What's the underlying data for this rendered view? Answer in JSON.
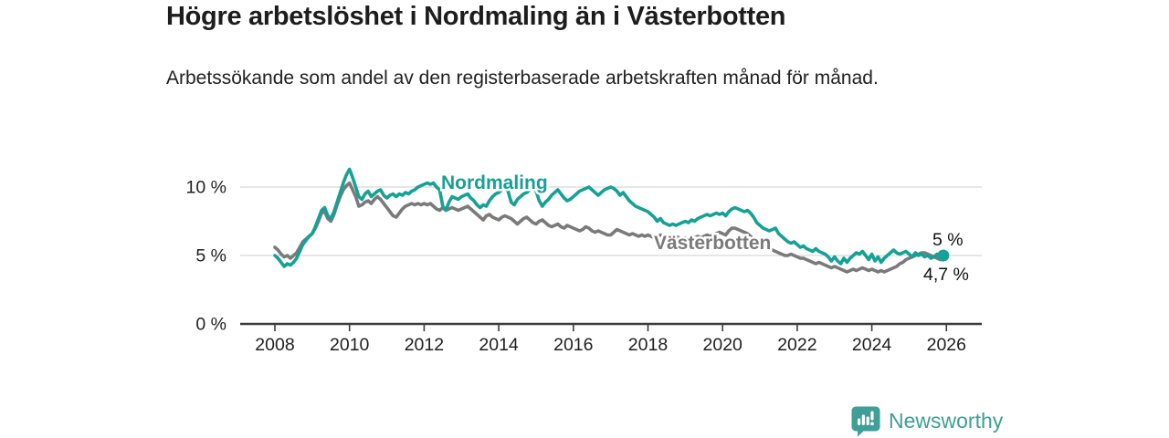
{
  "header": {
    "title": "Högre arbetslöshet i Nordmaling än i Västerbotten",
    "subtitle": "Arbetssökande som andel av den registerbaserade arbetskraften månad för månad."
  },
  "chart_data": {
    "type": "line",
    "title": "Högre arbetslöshet i Nordmaling än i Västerbotten",
    "subtitle": "Arbetssökande som andel av den registerbaserade arbetskraften månad för månad.",
    "unit": "%",
    "x_start_year": 2008,
    "x_interval": "monthly",
    "x_tick_years": [
      2008,
      2010,
      2012,
      2014,
      2016,
      2018,
      2020,
      2022,
      2024,
      2026
    ],
    "y_ticks": [
      {
        "label": "10 %",
        "value": 10
      },
      {
        "label": "5 %",
        "value": 5
      },
      {
        "label": "0 %",
        "value": 0
      }
    ],
    "ylim": [
      0,
      12
    ],
    "grid": true,
    "legend_position": "inline-labels",
    "series": [
      {
        "name": "Västerbotten",
        "color": "#7a7a7a",
        "end_label": "4,7 %",
        "end_value": 4.7,
        "values": [
          5.6,
          5.4,
          5.1,
          4.9,
          5.0,
          4.8,
          5.0,
          5.2,
          5.6,
          6.0,
          6.2,
          6.4,
          6.6,
          7.0,
          7.5,
          8.1,
          8.2,
          7.7,
          7.5,
          8.0,
          8.7,
          9.3,
          9.8,
          10.1,
          10.3,
          9.8,
          9.3,
          8.6,
          8.7,
          8.9,
          9.0,
          8.8,
          9.1,
          9.3,
          9.1,
          8.8,
          8.5,
          8.2,
          7.9,
          7.8,
          8.1,
          8.4,
          8.6,
          8.7,
          8.8,
          8.7,
          8.8,
          8.7,
          8.8,
          8.7,
          8.8,
          8.6,
          8.4,
          8.3,
          8.5,
          8.3,
          8.4,
          8.5,
          8.4,
          8.3,
          8.4,
          8.5,
          8.6,
          8.4,
          8.2,
          8.0,
          7.8,
          7.6,
          7.9,
          8.0,
          7.8,
          7.7,
          7.6,
          7.8,
          7.9,
          7.8,
          7.7,
          7.5,
          7.3,
          7.5,
          7.7,
          7.8,
          7.6,
          7.4,
          7.3,
          7.5,
          7.6,
          7.4,
          7.2,
          7.1,
          7.2,
          7.3,
          7.1,
          7.0,
          7.2,
          7.1,
          7.0,
          6.9,
          6.8,
          6.9,
          7.1,
          7.0,
          6.8,
          6.7,
          6.8,
          6.7,
          6.6,
          6.5,
          6.5,
          6.7,
          6.9,
          6.8,
          6.7,
          6.6,
          6.5,
          6.6,
          6.5,
          6.4,
          6.5,
          6.4,
          6.5,
          6.4,
          6.3,
          6.4,
          6.5,
          6.4,
          6.3,
          6.2,
          6.3,
          6.4,
          6.3,
          6.2,
          6.3,
          6.2,
          6.4,
          6.3,
          6.4,
          6.3,
          6.4,
          6.5,
          6.4,
          6.5,
          6.6,
          6.7,
          6.6,
          6.5,
          6.8,
          7.0,
          7.0,
          6.9,
          6.8,
          6.7,
          6.6,
          6.4,
          6.2,
          6.0,
          5.9,
          5.7,
          5.6,
          5.5,
          5.4,
          5.3,
          5.2,
          5.1,
          5.0,
          5.0,
          5.1,
          5.0,
          4.9,
          4.8,
          4.8,
          4.7,
          4.6,
          4.5,
          4.4,
          4.5,
          4.4,
          4.3,
          4.2,
          4.1,
          4.2,
          4.1,
          4.0,
          3.9,
          3.8,
          3.9,
          4.0,
          3.9,
          4.0,
          4.1,
          4.0,
          3.9,
          4.0,
          3.9,
          3.8,
          3.9,
          3.8,
          3.9,
          4.0,
          4.1,
          4.2,
          4.4,
          4.5,
          4.7,
          4.8,
          4.9,
          5.0,
          5.1,
          5.2,
          5.2,
          5.1,
          5.0,
          4.9,
          4.8,
          4.7,
          4.7
        ]
      },
      {
        "name": "Nordmaling",
        "color": "#16a195",
        "end_label": "5 %",
        "end_value": 5.0,
        "values": [
          5.0,
          4.8,
          4.5,
          4.2,
          4.4,
          4.3,
          4.5,
          4.8,
          5.3,
          5.8,
          6.1,
          6.4,
          6.6,
          7.1,
          7.7,
          8.3,
          8.5,
          7.9,
          7.7,
          8.2,
          8.9,
          9.6,
          10.3,
          10.9,
          11.3,
          10.7,
          10.0,
          9.3,
          9.1,
          9.5,
          9.7,
          9.3,
          9.5,
          9.7,
          9.8,
          9.4,
          9.2,
          9.4,
          9.5,
          9.3,
          9.5,
          9.4,
          9.6,
          9.5,
          9.7,
          9.8,
          10.0,
          10.1,
          10.2,
          10.3,
          10.2,
          10.3,
          10.0,
          9.8,
          8.6,
          8.3,
          8.9,
          9.3,
          9.2,
          9.1,
          9.3,
          9.4,
          9.5,
          9.2,
          9.0,
          8.7,
          8.5,
          8.7,
          8.6,
          9.0,
          9.3,
          9.5,
          9.6,
          9.8,
          9.9,
          9.7,
          8.9,
          8.7,
          9.1,
          9.3,
          9.5,
          9.6,
          9.8,
          9.9,
          9.7,
          9.0,
          8.6,
          8.9,
          9.1,
          9.4,
          9.6,
          9.8,
          9.5,
          9.2,
          9.0,
          9.1,
          9.3,
          9.5,
          9.7,
          9.8,
          9.9,
          10.0,
          9.8,
          9.6,
          9.4,
          9.6,
          9.8,
          9.9,
          10.0,
          9.9,
          9.7,
          9.4,
          9.6,
          9.3,
          9.0,
          8.8,
          8.6,
          8.5,
          8.4,
          8.3,
          8.2,
          8.0,
          7.8,
          7.5,
          7.7,
          7.4,
          7.3,
          7.2,
          7.3,
          7.2,
          7.3,
          7.4,
          7.5,
          7.4,
          7.6,
          7.5,
          7.7,
          7.8,
          7.9,
          8.0,
          7.9,
          8.0,
          8.1,
          8.0,
          8.1,
          7.9,
          8.2,
          8.4,
          8.5,
          8.4,
          8.3,
          8.2,
          8.3,
          8.1,
          7.8,
          7.4,
          7.2,
          7.0,
          6.9,
          6.8,
          6.9,
          7.0,
          6.6,
          6.4,
          6.2,
          6.0,
          5.9,
          6.0,
          5.8,
          5.6,
          5.7,
          5.5,
          5.4,
          5.3,
          5.5,
          5.3,
          5.2,
          5.1,
          4.9,
          4.6,
          4.9,
          4.6,
          4.4,
          4.8,
          4.5,
          4.8,
          5.0,
          5.2,
          5.1,
          5.3,
          5.0,
          4.7,
          5.1,
          4.6,
          4.9,
          4.5,
          4.8,
          5.0,
          5.2,
          5.4,
          5.2,
          5.1,
          5.2,
          5.3,
          5.1,
          4.9,
          5.2,
          5.0,
          5.1,
          4.9,
          5.0,
          4.8,
          4.9,
          5.1,
          5.0,
          5.0
        ]
      }
    ]
  },
  "footer": {
    "brand": "Newsworthy",
    "brand_color": "#3f9e97"
  },
  "colors": {
    "nordmaling": "#16a195",
    "vasterbotten": "#7a7a7a",
    "grid": "#d8d8d8",
    "axis": "#3c3c3c",
    "text": "#1d1d1d"
  }
}
